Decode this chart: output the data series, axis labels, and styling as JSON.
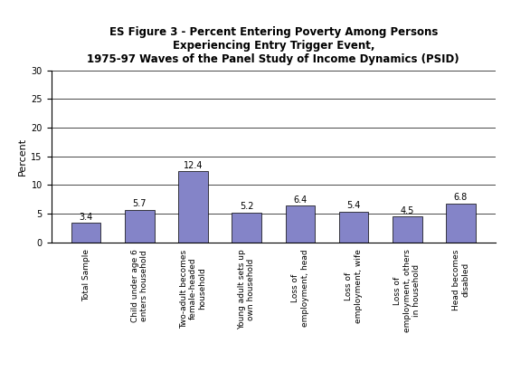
{
  "title_line1": "ES Figure 3 - Percent Entering Poverty Among Persons",
  "title_line2": "Experiencing Entry Trigger Event,",
  "title_line3": "1975-97 Waves of the Panel Study of Income Dynamics (PSID)",
  "categories": [
    "Total Sample",
    "Child under age 6\nenters household",
    "Two-adult becomes\nfemale-headed\nhousehold",
    "Young adult sets up\nown household",
    "Loss of\nemployment, head",
    "Loss of\nemployment, wife",
    "Loss of\nemployment, others\nin household",
    "Head becomes\ndisabled"
  ],
  "values": [
    3.4,
    5.7,
    12.4,
    5.2,
    6.4,
    5.4,
    4.5,
    6.8
  ],
  "bar_color": "#8484c8",
  "bar_edge_color": "#000000",
  "ylabel": "Percent",
  "ylim": [
    0,
    30
  ],
  "yticks": [
    0,
    5,
    10,
    15,
    20,
    25,
    30
  ],
  "title_fontsize": 8.5,
  "ylabel_fontsize": 8,
  "value_fontsize": 7,
  "tick_fontsize": 7,
  "xtick_fontsize": 6.5,
  "background_color": "#ffffff",
  "grid_color": "#000000"
}
